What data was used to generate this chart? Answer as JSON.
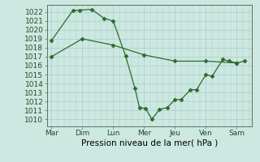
{
  "background_color": "#cce8e0",
  "grid_color": "#aacccc",
  "line_color": "#2d6b2d",
  "line1_x": [
    0,
    1,
    2,
    3,
    4,
    5,
    6
  ],
  "line1_y": [
    1017.0,
    1019.0,
    1018.3,
    1017.2,
    1016.5,
    1016.5,
    1016.3
  ],
  "line2_x": [
    0.0,
    0.7,
    0.9,
    1.3,
    1.7,
    2.0,
    2.4,
    2.7,
    2.85,
    3.05,
    3.25,
    3.5,
    3.75,
    4.0,
    4.2,
    4.5,
    4.7,
    5.0,
    5.2,
    5.55,
    5.75,
    6.0,
    6.25
  ],
  "line2_y": [
    1018.8,
    1022.2,
    1022.2,
    1022.3,
    1021.3,
    1021.0,
    1017.1,
    1013.5,
    1011.3,
    1011.2,
    1010.0,
    1011.1,
    1011.3,
    1012.2,
    1012.2,
    1013.3,
    1013.3,
    1015.0,
    1014.8,
    1016.7,
    1016.5,
    1016.3,
    1016.5
  ],
  "xtick_positions": [
    0,
    1,
    2,
    3,
    4,
    5,
    6
  ],
  "xtick_labels": [
    "Mar",
    "Dim",
    "Lun",
    "Mer",
    "Jeu",
    "Ven",
    "Sam"
  ],
  "ytick_min": 1010,
  "ytick_max": 1022,
  "ylim": [
    1009.2,
    1022.8
  ],
  "xlim": [
    -0.15,
    6.5
  ],
  "xlabel": "Pression niveau de la mer( hPa )",
  "xlabel_fontsize": 7.5,
  "tick_fontsize": 6.5,
  "marker": "D",
  "markersize": 2.5,
  "linewidth": 0.9
}
